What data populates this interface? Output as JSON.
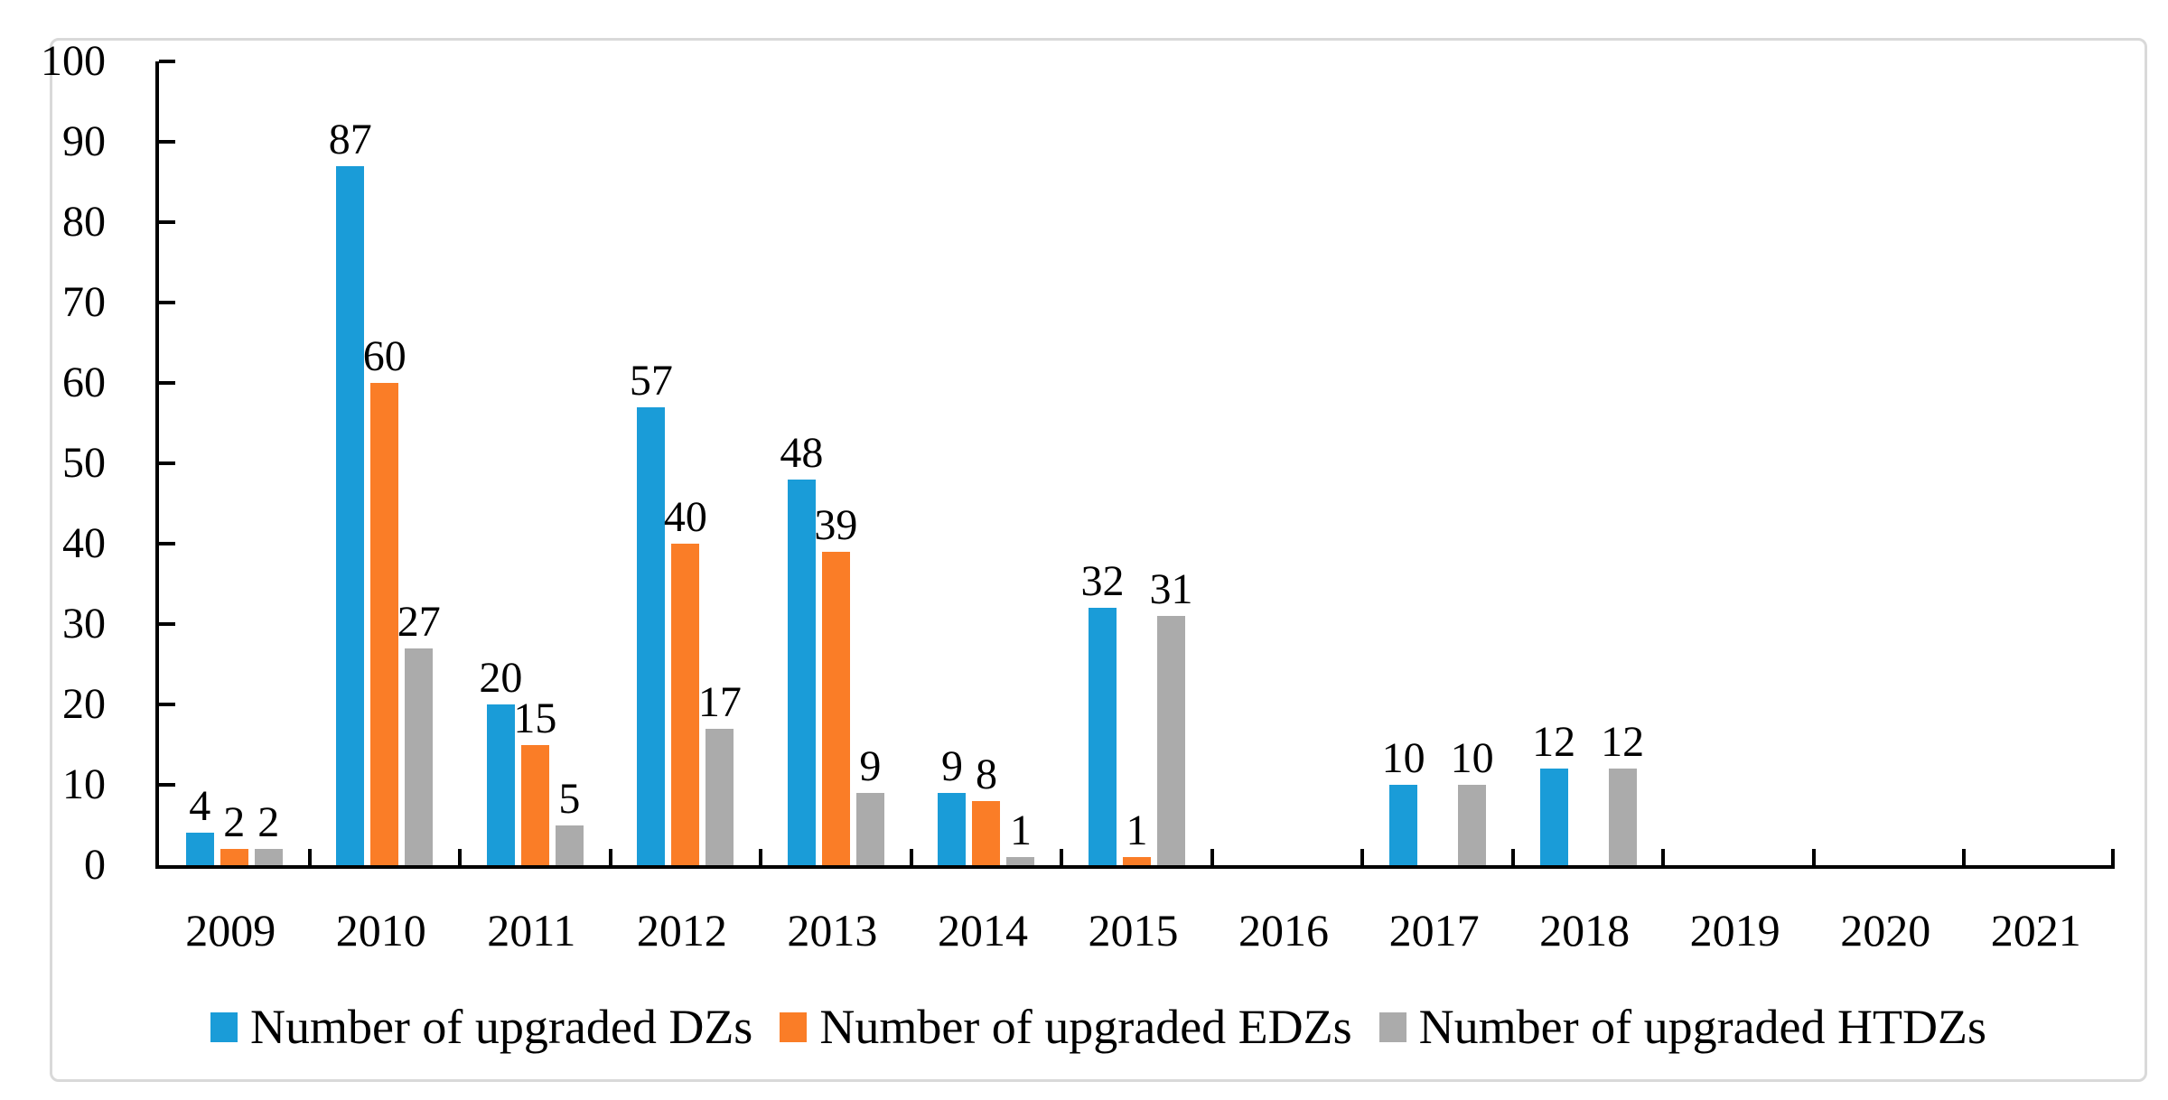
{
  "chart_data": {
    "type": "bar",
    "title": "",
    "xlabel": "",
    "ylabel": "",
    "categories": [
      "2009",
      "2010",
      "2011",
      "2012",
      "2013",
      "2014",
      "2015",
      "2016",
      "2017",
      "2018",
      "2019",
      "2020",
      "2021"
    ],
    "series": [
      {
        "name": "Number of upgraded DZs",
        "color": "#1A9CD8",
        "values": [
          4,
          87,
          20,
          57,
          48,
          9,
          32,
          null,
          10,
          12,
          null,
          null,
          null
        ]
      },
      {
        "name": "Number of upgraded EDZs",
        "color": "#FA7D27",
        "values": [
          2,
          60,
          15,
          40,
          39,
          8,
          1,
          null,
          null,
          null,
          null,
          null,
          null
        ]
      },
      {
        "name": "Number of upgraded HTDZs",
        "color": "#ABABAB",
        "values": [
          2,
          27,
          5,
          17,
          9,
          1,
          31,
          null,
          10,
          12,
          null,
          null,
          null
        ]
      }
    ],
    "y_axis": {
      "min": 0,
      "max": 100,
      "tick_step": 10,
      "tick_values": [
        0,
        10,
        20,
        30,
        40,
        50,
        60,
        70,
        80,
        90,
        100
      ],
      "tick_labels": [
        "0",
        "10",
        "20",
        "30",
        "40",
        "50",
        "60",
        "70",
        "80",
        "90",
        "100"
      ]
    },
    "grid": false,
    "data_labels": true,
    "legend_position": "bottom",
    "axis_color": "#000000",
    "frame_border_color": "#D9D9D9"
  }
}
